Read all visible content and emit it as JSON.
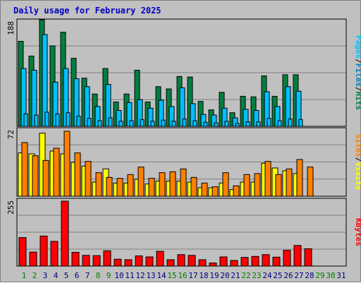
{
  "title": "Daily usage for February 2025",
  "colors": {
    "hits": "#008040",
    "files": "#00c0ff",
    "pages": "#00c0ff",
    "visits": "#ffff00",
    "sites": "#ff8000",
    "kbytes": "#ff0000",
    "weekday": "#000080",
    "weekend": "#008000",
    "grid": "#808080",
    "panel": "#c0c0c0"
  },
  "chart_data": [
    {
      "type": "bar",
      "title": "Daily usage for February 2025",
      "categories": [
        "1",
        "2",
        "3",
        "4",
        "5",
        "6",
        "7",
        "8",
        "9",
        "10",
        "11",
        "12",
        "13",
        "14",
        "15",
        "16",
        "17",
        "18",
        "19",
        "20",
        "21",
        "22",
        "23",
        "24",
        "25",
        "26",
        "27",
        "28",
        "29",
        "30",
        "31"
      ],
      "weekend_days": [
        "1",
        "2",
        "8",
        "9",
        "15",
        "16",
        "22",
        "23",
        "29",
        "30"
      ],
      "ymax_label": "188",
      "ylim": [
        0,
        188
      ],
      "axis_labels": [
        "Pages",
        "Files",
        "Hits"
      ],
      "series": [
        {
          "name": "Hits",
          "color": "#008040",
          "values": [
            150,
            124,
            188,
            142,
            166,
            120,
            85,
            57,
            102,
            43,
            57,
            99,
            43,
            70,
            66,
            88,
            87,
            44,
            29,
            60,
            24,
            53,
            52,
            89,
            53,
            91,
            91,
            0,
            0,
            0,
            0
          ]
        },
        {
          "name": "Files",
          "color": "#00c0ff",
          "values": [
            102,
            99,
            162,
            78,
            102,
            84,
            70,
            35,
            74,
            28,
            42,
            47,
            32,
            46,
            35,
            68,
            40,
            21,
            20,
            32,
            15,
            30,
            28,
            61,
            35,
            70,
            62,
            0,
            0,
            0,
            0
          ]
        },
        {
          "name": "Pages",
          "color": "#00c0ff",
          "values": [
            22,
            20,
            25,
            22,
            24,
            18,
            14,
            10,
            15,
            9,
            10,
            12,
            9,
            11,
            9,
            13,
            10,
            7,
            6,
            9,
            5,
            8,
            8,
            14,
            10,
            13,
            12,
            0,
            0,
            0,
            0
          ]
        }
      ]
    },
    {
      "type": "bar",
      "categories": [
        "1",
        "2",
        "3",
        "4",
        "5",
        "6",
        "7",
        "8",
        "9",
        "10",
        "11",
        "12",
        "13",
        "14",
        "15",
        "16",
        "17",
        "18",
        "19",
        "20",
        "21",
        "22",
        "23",
        "24",
        "25",
        "26",
        "27",
        "28",
        "29",
        "30",
        "31"
      ],
      "ymax_label": "72",
      "ylim": [
        0,
        72
      ],
      "axis_labels": [
        "Sites",
        "Visits"
      ],
      "series": [
        {
          "name": "Visits",
          "color": "#ffff00",
          "values": [
            46,
            45,
            67,
            48,
            45,
            36,
            32,
            15,
            29,
            14,
            14,
            18,
            13,
            16,
            16,
            16,
            15,
            9,
            9,
            14,
            7,
            15,
            15,
            35,
            30,
            27,
            24,
            0,
            0,
            0,
            0
          ]
        },
        {
          "name": "Sites",
          "color": "#ff8000",
          "values": [
            57,
            43,
            38,
            51,
            69,
            46,
            37,
            25,
            20,
            19,
            23,
            31,
            19,
            25,
            26,
            29,
            20,
            14,
            10,
            25,
            11,
            23,
            24,
            37,
            23,
            29,
            39,
            31,
            0,
            0,
            0
          ]
        }
      ]
    },
    {
      "type": "bar",
      "categories": [
        "1",
        "2",
        "3",
        "4",
        "5",
        "6",
        "7",
        "8",
        "9",
        "10",
        "11",
        "12",
        "13",
        "14",
        "15",
        "16",
        "17",
        "18",
        "19",
        "20",
        "21",
        "22",
        "23",
        "24",
        "25",
        "26",
        "27",
        "28",
        "29",
        "30",
        "31"
      ],
      "ymax_label": "255",
      "ylim": [
        0,
        255
      ],
      "axis_labels": [
        "KBytes"
      ],
      "series": [
        {
          "name": "KBytes",
          "color": "#ff0000",
          "values": [
            112,
            55,
            118,
            97,
            255,
            54,
            42,
            41,
            60,
            27,
            25,
            40,
            36,
            58,
            25,
            45,
            42,
            25,
            12,
            36,
            22,
            34,
            38,
            45,
            35,
            62,
            81,
            68,
            0,
            0,
            0
          ]
        }
      ]
    }
  ]
}
